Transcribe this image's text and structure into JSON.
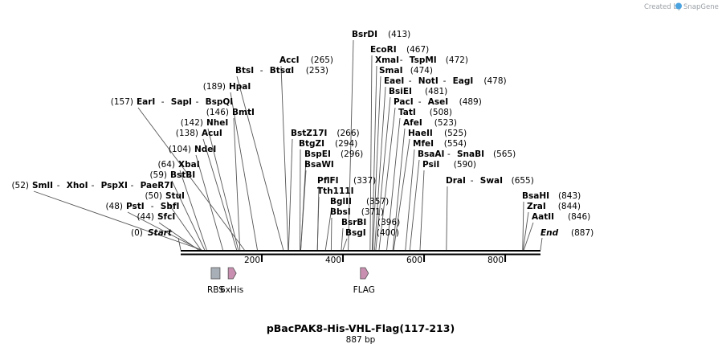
{
  "credit": {
    "text": "Created by",
    "brand": "SnapGene"
  },
  "map": {
    "title": "pBacPAK8-His-VHL-Flag(117-213)",
    "length_label": "887 bp",
    "length": 887,
    "start_label": "Start",
    "start_pos": "(0)",
    "end_label": "End",
    "end_pos": "(887)",
    "ticks": [
      "200",
      "400",
      "600",
      "800"
    ],
    "tick_values": [
      200,
      400,
      600,
      800
    ]
  },
  "sites": [
    {
      "pos": "(413)",
      "names": [
        "BsrDI"
      ],
      "bp": 413
    },
    {
      "pos": "(467)",
      "names": [
        "EcoRI"
      ],
      "bp": 467
    },
    {
      "pos": "(472)",
      "names": [
        "XmaI",
        "TspMI"
      ],
      "bp": 472
    },
    {
      "pos": "(474)",
      "names": [
        "SmaI"
      ],
      "bp": 474
    },
    {
      "pos": "(478)",
      "names": [
        "EaeI",
        "NotI",
        "EagI"
      ],
      "bp": 478
    },
    {
      "pos": "(481)",
      "names": [
        "BsiEI"
      ],
      "bp": 481
    },
    {
      "pos": "(489)",
      "names": [
        "PacI",
        "AseI"
      ],
      "bp": 489
    },
    {
      "pos": "(508)",
      "names": [
        "TatI"
      ],
      "bp": 508
    },
    {
      "pos": "(523)",
      "names": [
        "AfeI"
      ],
      "bp": 523
    },
    {
      "pos": "(525)",
      "names": [
        "HaeII"
      ],
      "bp": 525
    },
    {
      "pos": "(554)",
      "names": [
        "MfeI"
      ],
      "bp": 554
    },
    {
      "pos": "(565)",
      "names": [
        "BsaAI",
        "SnaBI"
      ],
      "bp": 565
    },
    {
      "pos": "(590)",
      "names": [
        "PsiI"
      ],
      "bp": 590
    },
    {
      "pos": "(655)",
      "names": [
        "DraI",
        "SwaI"
      ],
      "bp": 655
    },
    {
      "pos": "(843)",
      "names": [
        "BsaHI"
      ],
      "bp": 843
    },
    {
      "pos": "(844)",
      "names": [
        "ZraI"
      ],
      "bp": 844
    },
    {
      "pos": "(846)",
      "names": [
        "AatII"
      ],
      "bp": 846
    },
    {
      "pos": "(266)",
      "names": [
        "BstZ17I"
      ],
      "bp": 266
    },
    {
      "pos": "(294)",
      "names": [
        "BtgZI"
      ],
      "bp": 294
    },
    {
      "pos": "(296)",
      "names": [
        "BspEI"
      ],
      "bp": 296
    },
    {
      "pos": "",
      "names": [
        "BsaWI"
      ],
      "bp": 296
    },
    {
      "pos": "(337)",
      "names": [
        "PflFI"
      ],
      "bp": 337
    },
    {
      "pos": "",
      "names": [
        "Tth111I"
      ],
      "bp": 337
    },
    {
      "pos": "(357)",
      "names": [
        "BglII"
      ],
      "bp": 357
    },
    {
      "pos": "(371)",
      "names": [
        "BbsI"
      ],
      "bp": 371
    },
    {
      "pos": "(396)",
      "names": [
        "BsrBI"
      ],
      "bp": 396
    },
    {
      "pos": "(400)",
      "names": [
        "BsgI"
      ],
      "bp": 400
    },
    {
      "pos": "(265)",
      "names": [
        "AccI"
      ],
      "bp": 265
    },
    {
      "pos": "(253)",
      "names": [
        "BtsI",
        "BtsαI"
      ],
      "bp": 253
    },
    {
      "pos": "(189)",
      "names": [
        "HpaI"
      ],
      "bp": 189
    },
    {
      "pos": "(157)",
      "names": [
        "EarI",
        "SapI",
        "BspQI"
      ],
      "bp": 157
    },
    {
      "pos": "(146)",
      "names": [
        "BmtI"
      ],
      "bp": 146
    },
    {
      "pos": "(142)",
      "names": [
        "NheI"
      ],
      "bp": 142
    },
    {
      "pos": "(138)",
      "names": [
        "AcuI"
      ],
      "bp": 138
    },
    {
      "pos": "(104)",
      "names": [
        "NdeI"
      ],
      "bp": 104
    },
    {
      "pos": "(64)",
      "names": [
        "XbaI"
      ],
      "bp": 64
    },
    {
      "pos": "(59)",
      "names": [
        "BstBI"
      ],
      "bp": 59
    },
    {
      "pos": "(52)",
      "names": [
        "SmlI",
        "XhoI",
        "PspXI",
        "PaeR7I"
      ],
      "bp": 52
    },
    {
      "pos": "(50)",
      "names": [
        "StuI"
      ],
      "bp": 50
    },
    {
      "pos": "(48)",
      "names": [
        "PstI",
        "SbfI"
      ],
      "bp": 48
    },
    {
      "pos": "(44)",
      "names": [
        "SfcI"
      ],
      "bp": 44
    }
  ],
  "features": [
    {
      "name": "RBS",
      "type": "rbs",
      "start": 75,
      "end": 97,
      "color": "#a9afb7"
    },
    {
      "name": "6xHis",
      "type": "cds",
      "start": 117,
      "end": 135,
      "color": "#c98fb0"
    },
    {
      "name": "FLAG",
      "type": "cds",
      "start": 440,
      "end": 464,
      "color": "#c98fb0"
    }
  ],
  "colors": {
    "backbone": "#000000",
    "line": "#555555",
    "credit": "#9aa0a6",
    "brand_icon": "#4aa3df"
  }
}
